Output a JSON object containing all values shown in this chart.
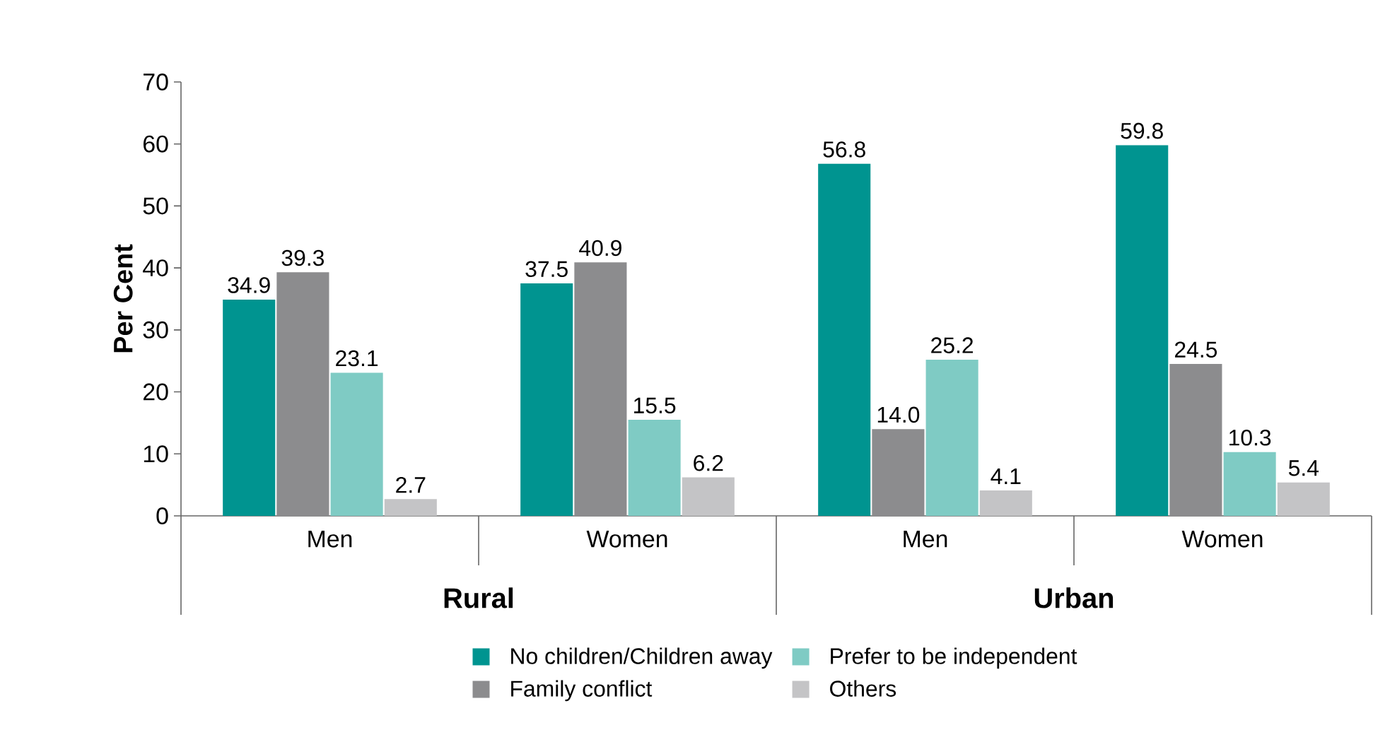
{
  "chart_data": {
    "type": "bar",
    "ylabel": "Per Cent",
    "categories": [
      "Men",
      "Women",
      "Men",
      "Women"
    ],
    "annotations": [
      "Rural",
      "Urban"
    ],
    "series": [
      {
        "name": "No children/Children away",
        "color": "#009490",
        "values": [
          34.9,
          37.5,
          56.8,
          59.8
        ],
        "value_labels": [
          "34.9",
          "37.5",
          "56.8",
          "59.8"
        ]
      },
      {
        "name": "Family conflict",
        "color": "#8c8c8e",
        "values": [
          39.3,
          40.9,
          14.0,
          24.5
        ],
        "value_labels": [
          "39.3",
          "40.9",
          "14.0",
          "24.5"
        ]
      },
      {
        "name": "Prefer to be independent",
        "color": "#7fcbc4",
        "values": [
          23.1,
          15.5,
          25.2,
          10.3
        ],
        "value_labels": [
          "23.1",
          "15.5",
          "25.2",
          "10.3"
        ]
      },
      {
        "name": "Others",
        "color": "#c4c4c6",
        "values": [
          2.7,
          6.2,
          4.1,
          5.4
        ],
        "value_labels": [
          "2.7",
          "6.2",
          "4.1",
          "5.4"
        ]
      }
    ],
    "ylim": [
      0,
      70
    ],
    "yticks": [
      0,
      10,
      20,
      30,
      40,
      50,
      60,
      70
    ],
    "legend": "bottom",
    "grid": false
  }
}
